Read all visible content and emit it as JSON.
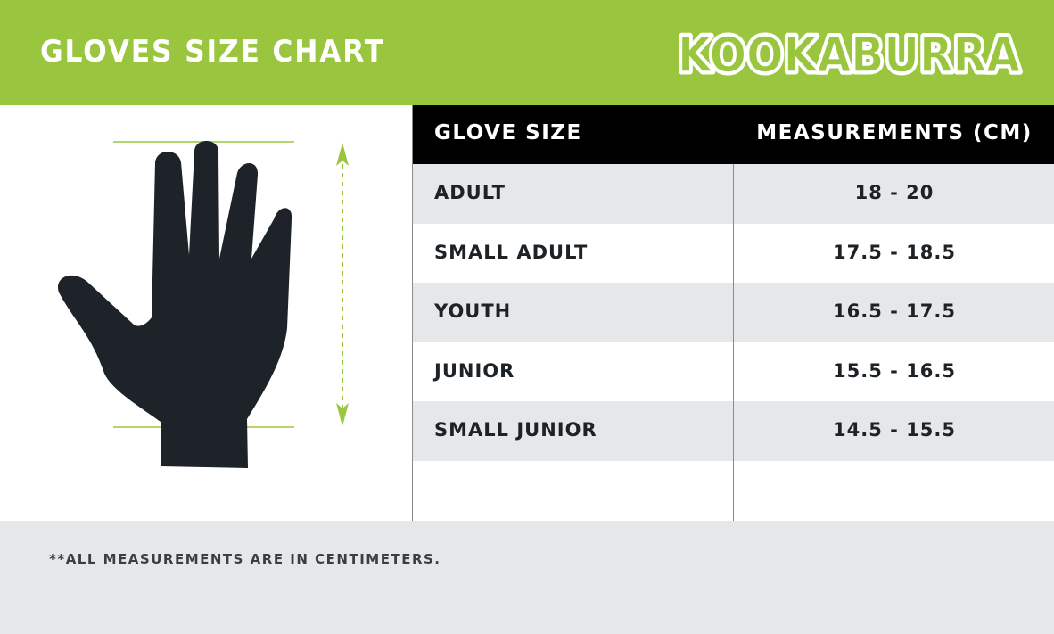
{
  "header": {
    "title": "GLOVES SIZE CHART",
    "brand": "KOOKABURRA",
    "background_color": "#9ac63f"
  },
  "illustration": {
    "icon": "hand-icon",
    "hand_color": "#1d2329",
    "guide_color": "#9ac63f"
  },
  "table": {
    "headers": [
      "GLOVE SIZE",
      "MEASUREMENTS (CM)"
    ],
    "rows": [
      {
        "size": "ADULT",
        "measurement": "18 - 20"
      },
      {
        "size": "SMALL ADULT",
        "measurement": "17.5 - 18.5"
      },
      {
        "size": "YOUTH",
        "measurement": "16.5 - 17.5"
      },
      {
        "size": "JUNIOR",
        "measurement": "15.5 - 16.5"
      },
      {
        "size": "SMALL JUNIOR",
        "measurement": "14.5 - 15.5"
      }
    ]
  },
  "footer": {
    "note": "**ALL MEASUREMENTS ARE IN CENTIMETERS."
  }
}
